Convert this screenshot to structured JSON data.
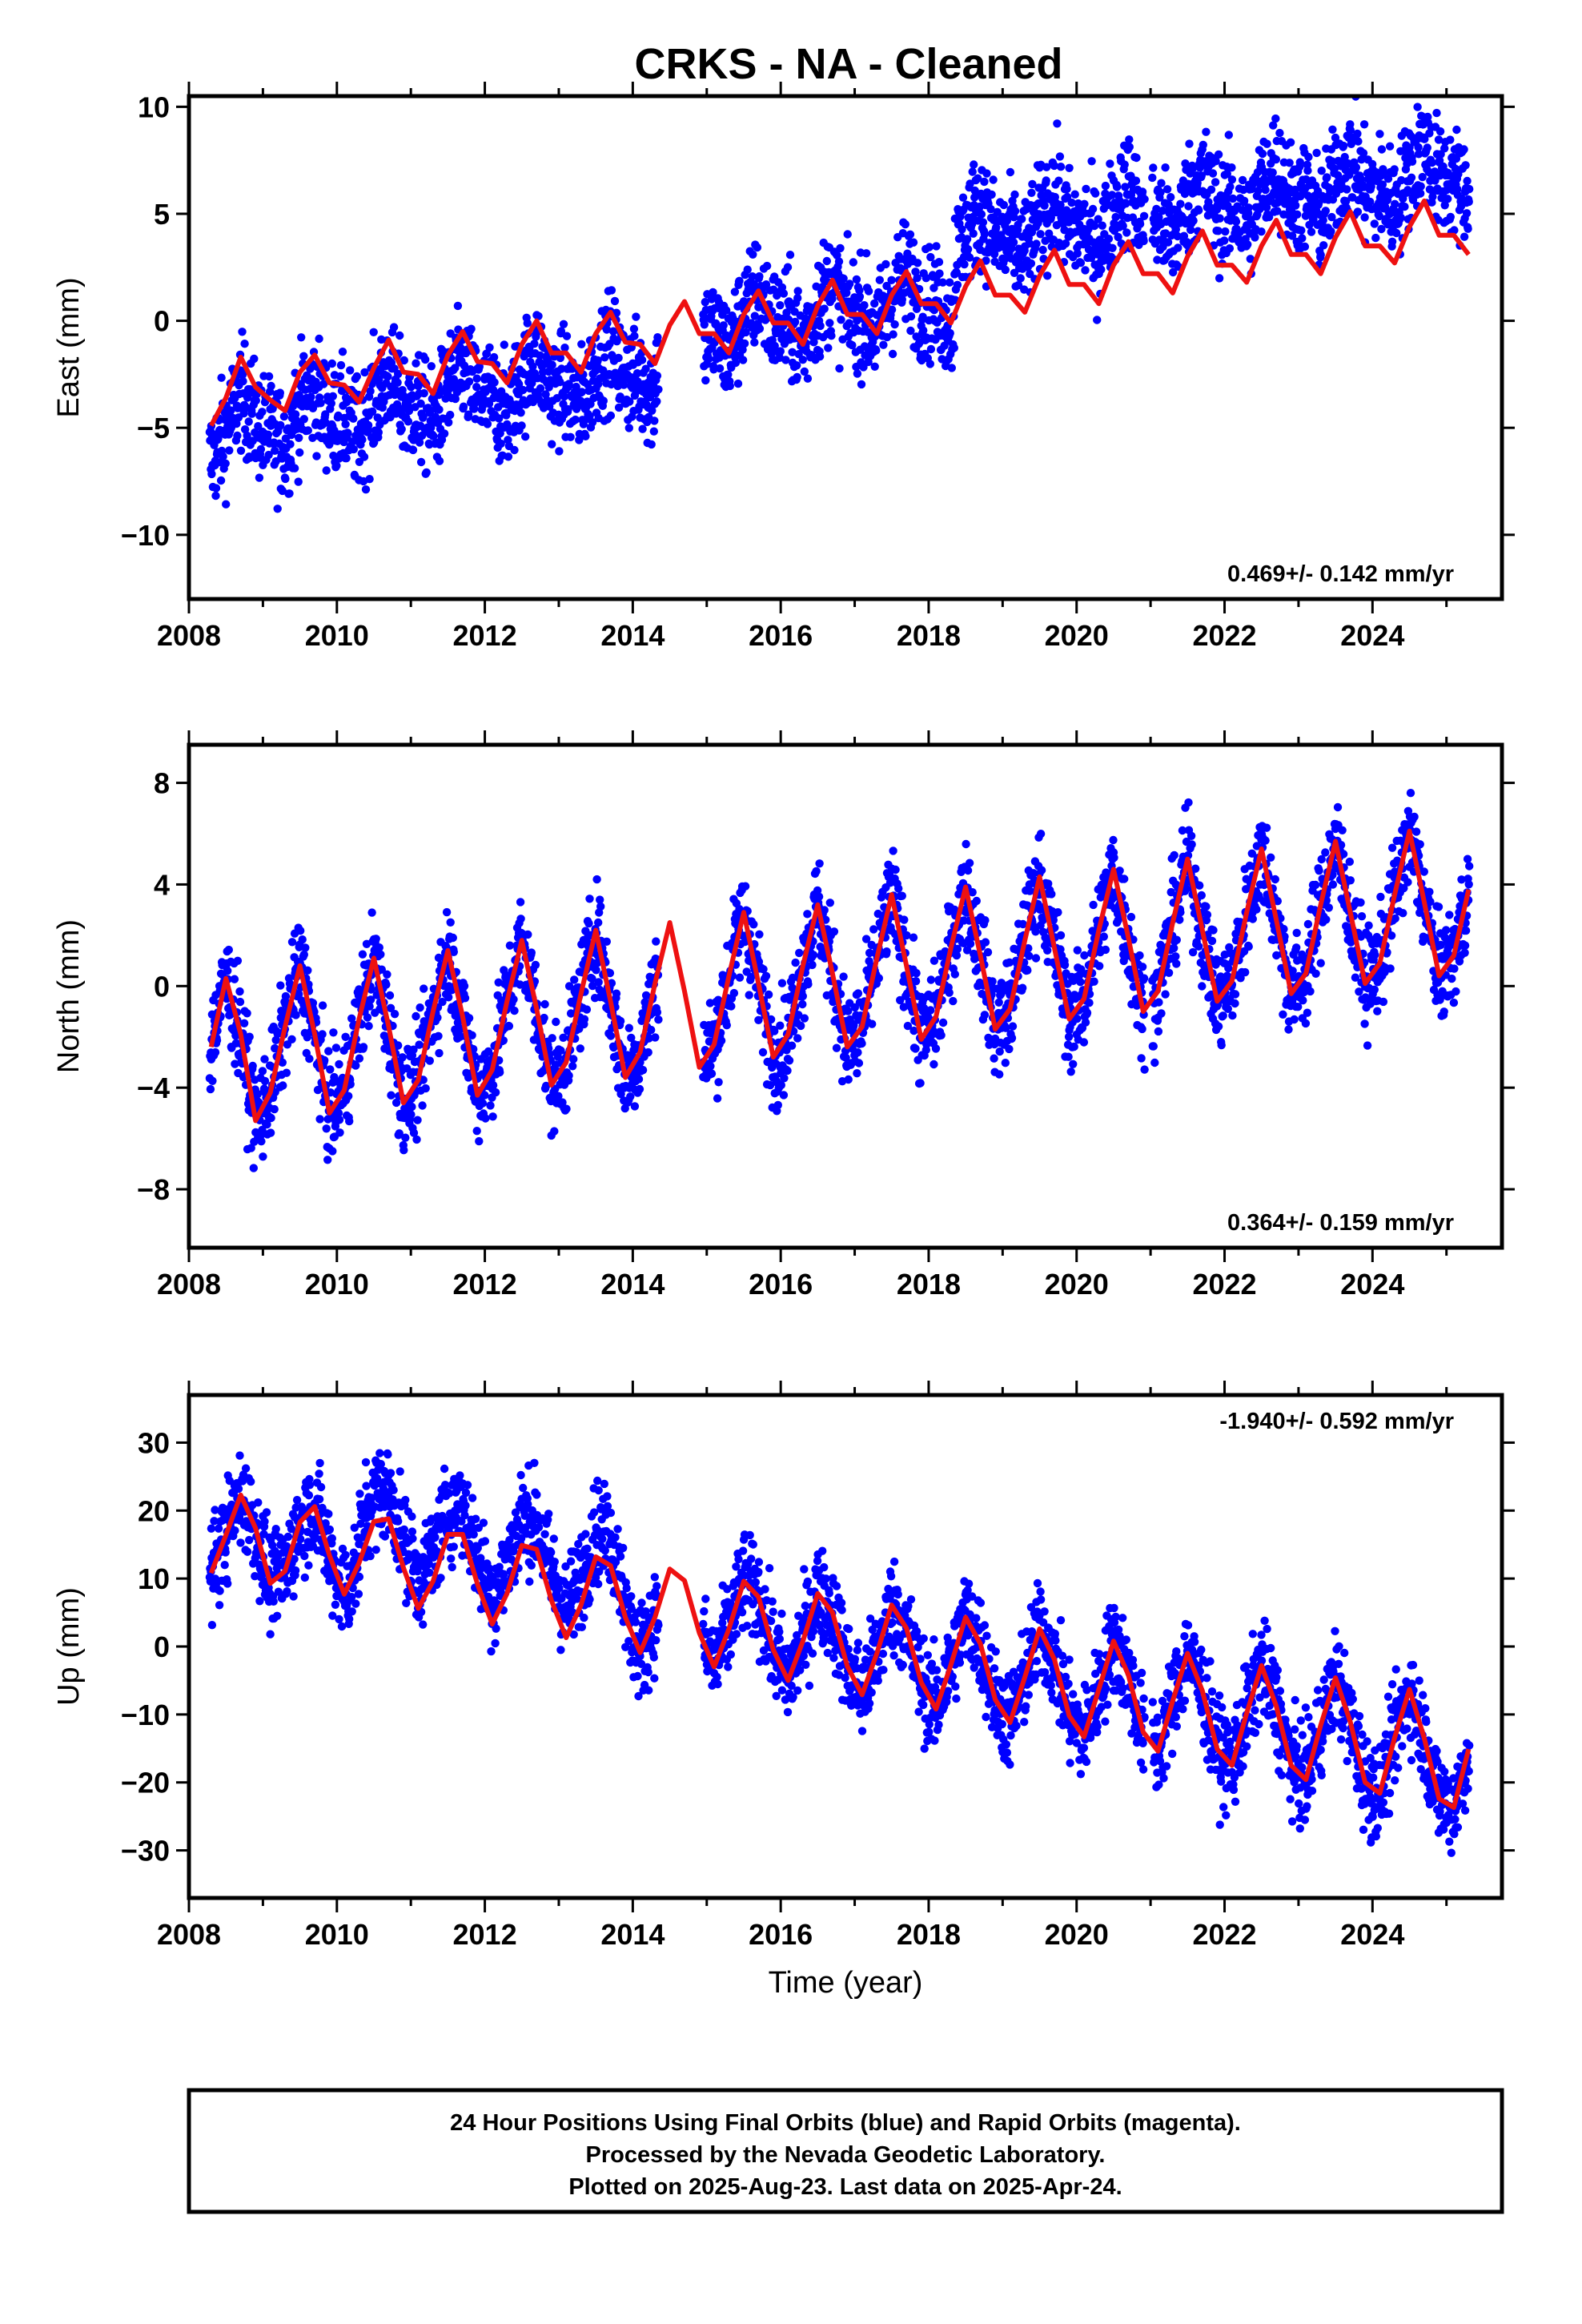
{
  "title": "CRKS  - NA - Cleaned",
  "colors": {
    "data": "#0000ff",
    "model": "#ee1111",
    "frame": "#000000"
  },
  "chart_data": [
    {
      "type": "scatter",
      "name": "east",
      "ylabel": "East (mm)",
      "xlabel": "",
      "xlim": [
        2008.0,
        2025.75
      ],
      "ylim": [
        -13,
        10.5
      ],
      "xticks": [
        2008,
        2010,
        2012,
        2014,
        2016,
        2018,
        2020,
        2022,
        2024
      ],
      "yticks": [
        -10,
        -5,
        0,
        5,
        10
      ],
      "yticklabels": [
        "−10",
        "−5",
        "0",
        "5",
        "10"
      ],
      "rate": "0.469+/- 0.142 mm/yr",
      "rate_position": "bottom-right",
      "model_line": {
        "x": [
          2008.3,
          2008.5,
          2008.7,
          2008.9,
          2009.1,
          2009.3,
          2009.5,
          2009.7,
          2009.9,
          2010.1,
          2010.3,
          2010.5,
          2010.7,
          2010.9,
          2011.1,
          2011.3,
          2011.5,
          2011.7,
          2011.9,
          2012.1,
          2012.3,
          2012.5,
          2012.7,
          2012.9,
          2013.1,
          2013.3,
          2013.5,
          2013.7,
          2013.9,
          2014.1,
          2014.3,
          2014.5,
          2014.7,
          2014.9,
          2015.1,
          2015.3,
          2015.5,
          2015.7,
          2015.9,
          2016.1,
          2016.3,
          2016.5,
          2016.7,
          2016.9,
          2017.1,
          2017.3,
          2017.5,
          2017.7,
          2017.9,
          2018.1,
          2018.3,
          2018.5,
          2018.7,
          2018.9,
          2019.1,
          2019.3,
          2019.5,
          2019.7,
          2019.9,
          2020.1,
          2020.3,
          2020.5,
          2020.7,
          2020.9,
          2021.1,
          2021.3,
          2021.5,
          2021.7,
          2021.9,
          2022.1,
          2022.3,
          2022.5,
          2022.7,
          2022.9,
          2023.1,
          2023.3,
          2023.5,
          2023.7,
          2023.9,
          2024.1,
          2024.3,
          2024.5,
          2024.7,
          2024.9,
          2025.1,
          2025.3
        ],
        "y": [
          -4.9,
          -3.6,
          -1.7,
          -3.1,
          -3.7,
          -4.2,
          -2.4,
          -1.6,
          -2.9,
          -3.0,
          -3.8,
          -2.2,
          -0.9,
          -2.4,
          -2.5,
          -3.4,
          -1.6,
          -0.5,
          -1.9,
          -2.0,
          -2.9,
          -1.1,
          0.0,
          -1.5,
          -1.5,
          -2.4,
          -0.6,
          0.4,
          -1.0,
          -1.1,
          -2.0,
          -0.2,
          0.9,
          -0.6,
          -0.6,
          -1.5,
          0.3,
          1.4,
          -0.1,
          -0.1,
          -1.1,
          0.7,
          1.9,
          0.3,
          0.3,
          -0.6,
          1.2,
          2.3,
          0.8,
          0.8,
          -0.1,
          1.6,
          2.8,
          1.2,
          1.2,
          0.4,
          2.1,
          3.3,
          1.7,
          1.7,
          0.8,
          2.6,
          3.7,
          2.2,
          2.2,
          1.3,
          3.0,
          4.2,
          2.6,
          2.6,
          1.8,
          3.5,
          4.7,
          3.1,
          3.1,
          2.2,
          3.9,
          5.1,
          3.5,
          3.5,
          2.7,
          4.4,
          5.6,
          4.0,
          4.0,
          3.1
        ]
      }
    },
    {
      "type": "scatter",
      "name": "north",
      "ylabel": "North (mm)",
      "xlabel": "",
      "xlim": [
        2008.0,
        2025.75
      ],
      "ylim": [
        -10.3,
        9.5
      ],
      "xticks": [
        2008,
        2010,
        2012,
        2014,
        2016,
        2018,
        2020,
        2022,
        2024
      ],
      "yticks": [
        -8,
        -4,
        0,
        4,
        8
      ],
      "yticklabels": [
        "−8",
        "−4",
        "0",
        "4",
        "8"
      ],
      "rate": "0.364+/- 0.159 mm/yr",
      "rate_position": "bottom-right",
      "model_line": {
        "x": [
          2008.3,
          2008.5,
          2008.7,
          2008.9,
          2009.1,
          2009.3,
          2009.5,
          2009.7,
          2009.9,
          2010.1,
          2010.3,
          2010.5,
          2010.7,
          2010.9,
          2011.1,
          2011.3,
          2011.5,
          2011.7,
          2011.9,
          2012.1,
          2012.3,
          2012.5,
          2012.7,
          2012.9,
          2013.1,
          2013.3,
          2013.5,
          2013.7,
          2013.9,
          2014.1,
          2014.3,
          2014.5,
          2014.7,
          2014.9,
          2015.1,
          2015.3,
          2015.5,
          2015.7,
          2015.9,
          2016.1,
          2016.3,
          2016.5,
          2016.7,
          2016.9,
          2017.1,
          2017.3,
          2017.5,
          2017.7,
          2017.9,
          2018.1,
          2018.3,
          2018.5,
          2018.7,
          2018.9,
          2019.1,
          2019.3,
          2019.5,
          2019.7,
          2019.9,
          2020.1,
          2020.3,
          2020.5,
          2020.7,
          2020.9,
          2021.1,
          2021.3,
          2021.5,
          2021.7,
          2021.9,
          2022.1,
          2022.3,
          2022.5,
          2022.7,
          2022.9,
          2023.1,
          2023.3,
          2023.5,
          2023.7,
          2023.9,
          2024.1,
          2024.3,
          2024.5,
          2024.7,
          2024.9,
          2025.1,
          2025.3
        ],
        "y": [
          -2.4,
          0.3,
          -1.9,
          -5.3,
          -4.2,
          -1.6,
          0.8,
          -1.9,
          -5.0,
          -4.1,
          -1.3,
          1.1,
          -1.6,
          -4.6,
          -3.7,
          -1.0,
          1.4,
          -1.2,
          -4.3,
          -3.3,
          -0.6,
          1.8,
          -0.9,
          -3.9,
          -3.0,
          -0.3,
          2.2,
          -0.6,
          -3.6,
          -2.6,
          0.1,
          2.5,
          -0.2,
          -3.2,
          -2.3,
          0.4,
          2.9,
          0.1,
          -2.8,
          -1.9,
          0.8,
          3.2,
          0.5,
          -2.4,
          -1.6,
          1.1,
          3.6,
          0.8,
          -2.1,
          -1.2,
          1.5,
          3.9,
          1.2,
          -1.7,
          -0.9,
          1.8,
          4.3,
          1.5,
          -1.3,
          -0.5,
          2.2,
          4.6,
          1.9,
          -1.0,
          -0.2,
          2.5,
          5.0,
          2.2,
          -0.6,
          0.2,
          2.9,
          5.4,
          2.6,
          -0.3,
          0.5,
          3.2,
          5.7,
          2.9,
          0.1,
          0.9,
          3.6,
          6.1,
          3.3,
          0.4,
          1.2,
          3.8
        ]
      }
    },
    {
      "type": "scatter",
      "name": "up",
      "ylabel": "Up (mm)",
      "xlabel": "Time (year)",
      "xlim": [
        2008.0,
        2025.75
      ],
      "ylim": [
        -37,
        37
      ],
      "xticks": [
        2008,
        2010,
        2012,
        2014,
        2016,
        2018,
        2020,
        2022,
        2024
      ],
      "yticks": [
        -30,
        -20,
        -10,
        0,
        10,
        20,
        30
      ],
      "yticklabels": [
        "−30",
        "−20",
        "−10",
        "0",
        "10",
        "20",
        "30"
      ],
      "rate": "-1.940+/- 0.592 mm/yr",
      "rate_position": "top-right",
      "model_line": {
        "x": [
          2008.3,
          2008.5,
          2008.7,
          2008.9,
          2009.1,
          2009.3,
          2009.5,
          2009.7,
          2009.9,
          2010.1,
          2010.3,
          2010.5,
          2010.7,
          2010.9,
          2011.1,
          2011.3,
          2011.5,
          2011.7,
          2011.9,
          2012.1,
          2012.3,
          2012.5,
          2012.7,
          2012.9,
          2013.1,
          2013.3,
          2013.5,
          2013.7,
          2013.9,
          2014.1,
          2014.3,
          2014.5,
          2014.7,
          2014.9,
          2015.1,
          2015.3,
          2015.5,
          2015.7,
          2015.9,
          2016.1,
          2016.3,
          2016.5,
          2016.7,
          2016.9,
          2017.1,
          2017.3,
          2017.5,
          2017.7,
          2017.9,
          2018.1,
          2018.3,
          2018.5,
          2018.7,
          2018.9,
          2019.1,
          2019.3,
          2019.5,
          2019.7,
          2019.9,
          2020.1,
          2020.3,
          2020.5,
          2020.7,
          2020.9,
          2021.1,
          2021.3,
          2021.5,
          2021.7,
          2021.9,
          2022.1,
          2022.3,
          2022.5,
          2022.7,
          2022.9,
          2023.1,
          2023.3,
          2023.5,
          2023.7,
          2023.9,
          2024.1,
          2024.3,
          2024.5,
          2024.7,
          2024.9,
          2025.1,
          2025.3
        ],
        "y": [
          10.8,
          16.4,
          22.3,
          17.4,
          9.3,
          11.1,
          18.3,
          20.6,
          13.4,
          7.7,
          12.3,
          18.4,
          18.8,
          11.6,
          5.6,
          9.6,
          16.5,
          16.5,
          9.2,
          3.3,
          7.8,
          14.9,
          14.3,
          6.8,
          1.3,
          6.1,
          13.2,
          11.9,
          4.3,
          -0.9,
          4.3,
          11.4,
          9.7,
          2.0,
          -3.0,
          2.6,
          9.6,
          7.3,
          -0.5,
          -5.0,
          0.8,
          7.8,
          5.0,
          -2.9,
          -7.1,
          -1.0,
          6.1,
          2.7,
          -5.3,
          -9.2,
          -2.7,
          4.3,
          0.4,
          -7.8,
          -11.2,
          -4.5,
          2.6,
          -1.9,
          -10.2,
          -13.3,
          -6.3,
          0.8,
          -4.2,
          -12.6,
          -15.4,
          -8.0,
          -1.0,
          -6.5,
          -15.1,
          -17.5,
          -9.8,
          -2.8,
          -8.8,
          -17.5,
          -19.6,
          -11.6,
          -4.6,
          -11.1,
          -20.0,
          -21.6,
          -13.4,
          -6.3,
          -13.5,
          -22.4,
          -23.7,
          -15.1
        ]
      }
    }
  ],
  "caption": {
    "line1": "24 Hour Positions Using Final Orbits (blue) and Rapid Orbits (magenta).",
    "line2": "Processed by the Nevada Geodetic Laboratory.",
    "line3": "Plotted on 2025-Aug-23. Last data on 2025-Apr-24."
  }
}
